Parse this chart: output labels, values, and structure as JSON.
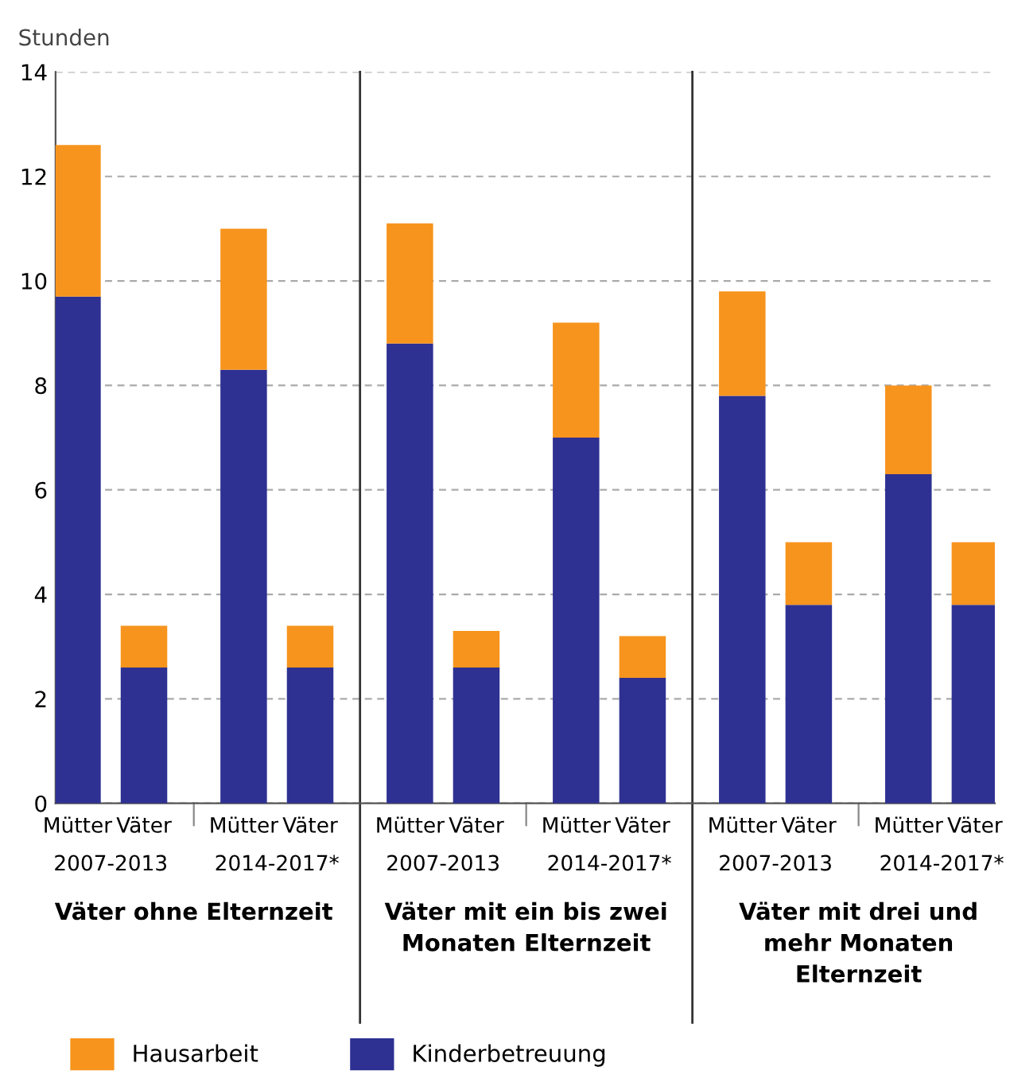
{
  "chart_data": {
    "type": "bar",
    "stacked": true,
    "ylabel": "Stunden",
    "categories": [
      "Mütter",
      "Väter",
      "Mütter",
      "Väter",
      "Mütter",
      "Väter",
      "Mütter",
      "Väter",
      "Mütter",
      "Väter",
      "Mütter",
      "Väter"
    ],
    "series": [
      {
        "name": "Kinderbetreuung",
        "color": "#2e3192",
        "values": [
          9.7,
          2.6,
          8.3,
          2.6,
          8.8,
          2.6,
          7.0,
          2.4,
          7.8,
          3.8,
          6.3,
          3.8
        ]
      },
      {
        "name": "Hausarbeit",
        "color": "#f7941d",
        "values": [
          2.9,
          0.8,
          2.7,
          0.8,
          2.3,
          0.7,
          2.2,
          0.8,
          2.0,
          1.2,
          1.7,
          1.2
        ]
      }
    ],
    "ylim": [
      0,
      14
    ],
    "yticks": [
      0,
      2,
      4,
      6,
      8,
      10,
      12,
      14
    ],
    "grid": "y",
    "legend": "bottom",
    "annotations": [
      "2007-2013",
      "2014-2017*",
      "2007-2013",
      "2014-2017*",
      "2007-2013",
      "2014-2017*",
      "Väter ohne Elternzeit",
      "Väter mit ein bis zwei\nMonaten Elternzeit",
      "Väter mit drei und\nmehr Monaten\nElternzeit"
    ]
  }
}
